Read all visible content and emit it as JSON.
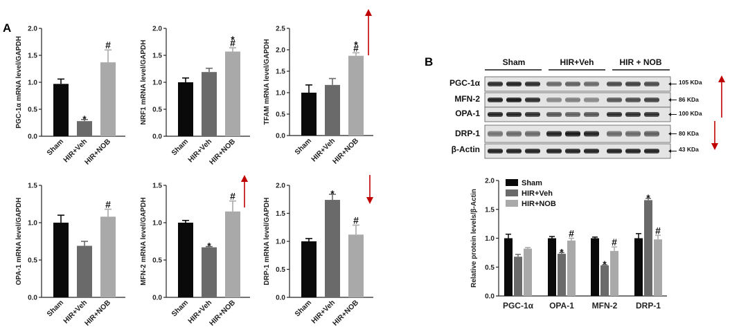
{
  "panels": {
    "a": "A",
    "b": "B"
  },
  "colors": {
    "sham": "#0a0a0a",
    "veh": "#6a6a6a",
    "nob": "#a9a9a9",
    "arrow": "#c00000"
  },
  "chart_data": [
    {
      "type": "bar",
      "ylabel": "PGC-1α mRNA level/GAPDH",
      "categories": [
        "Sham",
        "HIR+Veh",
        "HIR+NOB"
      ],
      "values": [
        0.97,
        0.28,
        1.37
      ],
      "errors": [
        0.09,
        0.03,
        0.23
      ],
      "annotations": [
        "",
        "*",
        "#"
      ],
      "ylim": [
        0,
        2.0
      ],
      "yticks": [
        "0.0",
        "0.5",
        "1.0",
        "1.5",
        "2.0"
      ]
    },
    {
      "type": "bar",
      "ylabel": "NRF1 mRNA level/GAPDH",
      "categories": [
        "Sham",
        "HIR+Veh",
        "HIR+NOB"
      ],
      "values": [
        1.0,
        1.19,
        1.57
      ],
      "errors": [
        0.08,
        0.07,
        0.07
      ],
      "annotations": [
        "",
        "",
        "*#"
      ],
      "ylim": [
        0,
        2.0
      ],
      "yticks": [
        "0.0",
        "0.5",
        "1.0",
        "1.5",
        "2.0"
      ]
    },
    {
      "type": "bar",
      "ylabel": "TFAM mRNA level/GAPDH",
      "categories": [
        "Sham",
        "HIR+Veh",
        "HIR+NOB"
      ],
      "values": [
        1.0,
        1.18,
        1.86
      ],
      "errors": [
        0.18,
        0.15,
        0.07
      ],
      "annotations": [
        "",
        "",
        "*#"
      ],
      "ylim": [
        0,
        2.5
      ],
      "yticks": [
        "0.0",
        "0.5",
        "1.0",
        "1.5",
        "2.0",
        "2.5"
      ]
    },
    {
      "type": "bar",
      "ylabel": "OPA-1 mRNA level/GAPDH",
      "categories": [
        "Sham",
        "HIR+Veh",
        "HIR+NOB"
      ],
      "values": [
        1.0,
        0.69,
        1.08
      ],
      "errors": [
        0.1,
        0.06,
        0.1
      ],
      "annotations": [
        "",
        "",
        "#"
      ],
      "ylim": [
        0,
        1.5
      ],
      "yticks": [
        "0.0",
        "0.5",
        "1.0",
        "1.5"
      ]
    },
    {
      "type": "bar",
      "ylabel": "MFN-2 mRNA level/GAPDH",
      "categories": [
        "Sham",
        "HIR+Veh",
        "HIR+NOB"
      ],
      "values": [
        1.0,
        0.67,
        1.15
      ],
      "errors": [
        0.03,
        0.01,
        0.14
      ],
      "annotations": [
        "",
        "*",
        "#"
      ],
      "ylim": [
        0,
        1.5
      ],
      "yticks": [
        "0.0",
        "0.5",
        "1.0",
        "1.5"
      ]
    },
    {
      "type": "bar",
      "ylabel": "DRP-1 mRNA level/GAPDH",
      "categories": [
        "Sham",
        "HIR+Veh",
        "HIR+NOB"
      ],
      "values": [
        1.0,
        1.74,
        1.12
      ],
      "errors": [
        0.05,
        0.1,
        0.17
      ],
      "annotations": [
        "",
        "*",
        "#"
      ],
      "ylim": [
        0,
        2.0
      ],
      "yticks": [
        "0.0",
        "0.5",
        "1.0",
        "1.5",
        "2.0"
      ]
    },
    {
      "type": "bar",
      "ylabel": "Relative protein levels/β-Actin",
      "categories": [
        "PGC-1α",
        "OPA-1",
        "MFN-2",
        "DRP-1"
      ],
      "series": [
        {
          "name": "Sham",
          "values": [
            1.0,
            1.0,
            1.0,
            1.0
          ],
          "errors": [
            0.07,
            0.03,
            0.02,
            0.08
          ],
          "annotations": [
            "",
            "",
            "",
            ""
          ]
        },
        {
          "name": "HIR+Veh",
          "values": [
            0.68,
            0.73,
            0.53,
            1.66
          ],
          "errors": [
            0.04,
            0.02,
            0.01,
            0.03
          ],
          "annotations": [
            "",
            "*",
            "*",
            "*"
          ]
        },
        {
          "name": "HIR+NOB",
          "values": [
            0.82,
            0.96,
            0.78,
            0.98
          ],
          "errors": [
            0.02,
            0.04,
            0.07,
            0.07
          ],
          "annotations": [
            "",
            "#",
            "#",
            "#"
          ]
        }
      ],
      "ylim": [
        0,
        2.0
      ],
      "yticks": [
        "0.0",
        "0.5",
        "1.0",
        "1.5",
        "2.0"
      ],
      "legend": "top-left"
    }
  ],
  "blot": {
    "groups": [
      "Sham",
      "HIR+Veh",
      "HIR + NOB"
    ],
    "rows": [
      {
        "label": "PGC-1α",
        "kda": "105 KDa"
      },
      {
        "label": "MFN-2",
        "kda": "86 KDa"
      },
      {
        "label": "OPA-1",
        "kda": "100 KDa"
      },
      {
        "label": "DRP-1",
        "kda": "80 KDa"
      },
      {
        "label": "β-Actin",
        "kda": "43 KDa"
      }
    ]
  }
}
